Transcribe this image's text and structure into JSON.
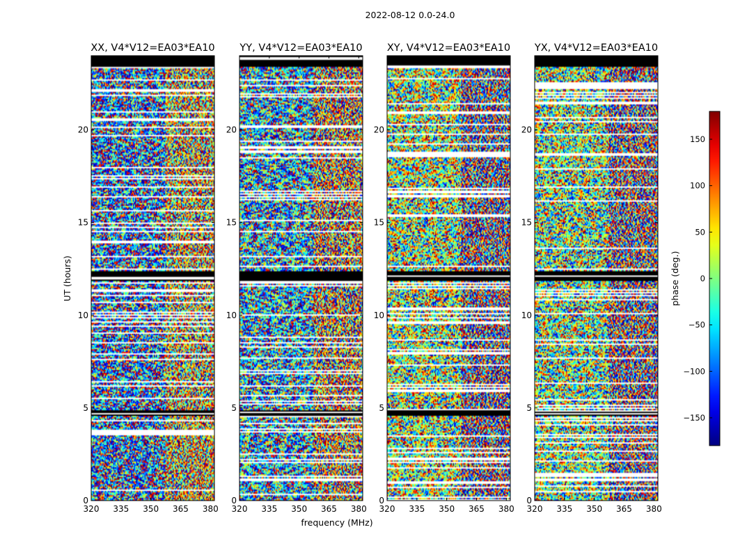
{
  "figure": {
    "suptitle": "2022-08-12 0.0-24.0",
    "xlabel": "frequency (MHz)",
    "ylabel": "UT (hours)"
  },
  "colors": {
    "missing_data": "#ffffff",
    "flagged_data": "#000000",
    "axis": "#000000"
  },
  "colorbar": {
    "label": "phase (deg.)",
    "colormap": "jet",
    "range": [
      -180,
      180
    ],
    "ticks": [
      -150,
      -100,
      -50,
      0,
      50,
      100,
      150
    ],
    "tick_labels": [
      "−150",
      "−100",
      "−50",
      "0",
      "50",
      "100",
      "150"
    ]
  },
  "chart_data": [
    {
      "type": "heatmap",
      "title": "XX, V4*V12=EA03*EA10",
      "xlabel": "frequency (MHz)",
      "ylabel": "UT (hours)",
      "xlim": [
        320,
        382
      ],
      "ylim": [
        0,
        24
      ],
      "xticks": [
        320,
        335,
        350,
        365,
        380
      ],
      "yticks": [
        0,
        5,
        10,
        15,
        20
      ],
      "values": "phase (deg.)",
      "seed": 11,
      "bias": -110
    },
    {
      "type": "heatmap",
      "title": "YY, V4*V12=EA03*EA10",
      "xlabel": "frequency (MHz)",
      "ylabel": "UT (hours)",
      "xlim": [
        320,
        382
      ],
      "ylim": [
        0,
        24
      ],
      "xticks": [
        320,
        335,
        350,
        365,
        380
      ],
      "yticks": [
        0,
        5,
        10,
        15,
        20
      ],
      "values": "phase (deg.)",
      "seed": 23,
      "bias": -75
    },
    {
      "type": "heatmap",
      "title": "XY, V4*V12=EA03*EA10",
      "xlabel": "frequency (MHz)",
      "ylabel": "UT (hours)",
      "xlim": [
        320,
        382
      ],
      "ylim": [
        0,
        24
      ],
      "xticks": [
        320,
        335,
        350,
        365,
        380
      ],
      "yticks": [
        0,
        5,
        10,
        15,
        20
      ],
      "values": "phase (deg.)",
      "seed": 37,
      "bias": 10
    },
    {
      "type": "heatmap",
      "title": "YX, V4*V12=EA03*EA10",
      "xlabel": "frequency (MHz)",
      "ylabel": "UT (hours)",
      "xlim": [
        320,
        382
      ],
      "ylim": [
        0,
        24
      ],
      "xticks": [
        320,
        335,
        350,
        365,
        380
      ],
      "yticks": [
        0,
        5,
        10,
        15,
        20
      ],
      "values": "phase (deg.)",
      "seed": 53,
      "bias": 0
    }
  ]
}
